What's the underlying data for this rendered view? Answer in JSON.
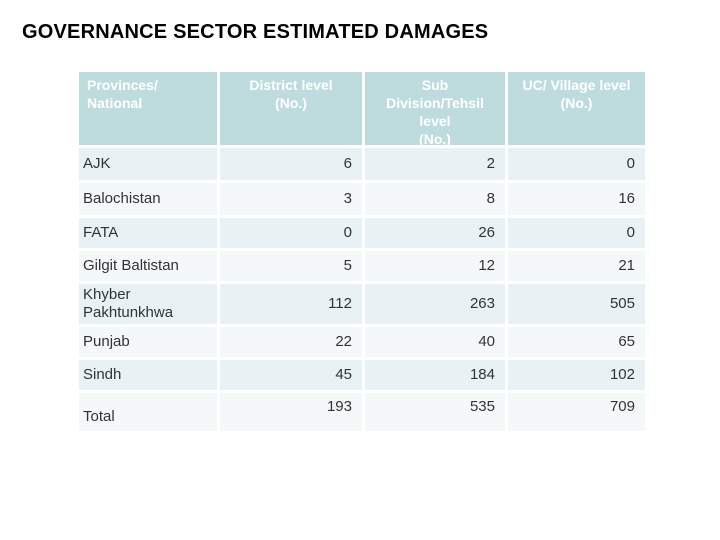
{
  "title": "GOVERNANCE SECTOR ESTIMATED DAMAGES",
  "table": {
    "headers": [
      "Provinces/\nNational",
      "District level\n(No.)",
      "Sub\nDivision/Tehsil\nlevel\n(No.)",
      "UC/ Village level\n(No.)"
    ],
    "rows": [
      {
        "label": "AJK",
        "district": "6",
        "sub_division": "2",
        "uc_village": "0"
      },
      {
        "label": "Balochistan",
        "district": "3",
        "sub_division": "8",
        "uc_village": "16"
      },
      {
        "label": "FATA",
        "district": "0",
        "sub_division": "26",
        "uc_village": "0"
      },
      {
        "label": "Gilgit Baltistan",
        "district": "5",
        "sub_division": "12",
        "uc_village": "21"
      },
      {
        "label": "Khyber Pakhtunkhwa",
        "district": "112",
        "sub_division": "263",
        "uc_village": "505"
      },
      {
        "label": "Punjab",
        "district": "22",
        "sub_division": "40",
        "uc_village": "65"
      },
      {
        "label": "Sindh",
        "district": "45",
        "sub_division": "184",
        "uc_village": "102"
      },
      {
        "label": "Total",
        "district": "193",
        "sub_division": "535",
        "uc_village": "709"
      }
    ]
  },
  "colors": {
    "header_bg": "#bedcdd",
    "header_text": "#ffffff",
    "row_tint_a": "#e8f1f3",
    "row_tint_b": "#f4f8f9",
    "body_text": "#333333",
    "title_text": "#000000",
    "gridline": "#ffffff"
  }
}
